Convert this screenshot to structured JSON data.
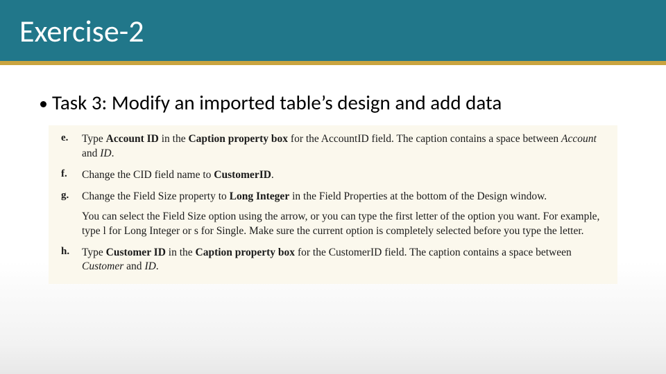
{
  "colors": {
    "title_band": "#21778a",
    "gold_line": "#c9a43f",
    "steps_bg": "#fbf8ed",
    "text": "#1a1a1a",
    "title_text": "#ffffff"
  },
  "typography": {
    "title_font": "Calibri",
    "title_size_pt": 33,
    "bullet_font": "Calibri",
    "bullet_size_pt": 22,
    "body_font": "Palatino Linotype",
    "body_size_pt": 11.5
  },
  "title": "Exercise-2",
  "bullet": "Task 3: Modify an imported table’s design and add data",
  "steps": {
    "e": {
      "letter": "e.",
      "t1": "Type ",
      "b1": "Account ID",
      "t2": " in the ",
      "b2": "Caption property box",
      "t3": " for the AccountID field. The caption contains a space between ",
      "i1": "Account",
      "t4": " and ",
      "i2": "ID",
      "t5": "."
    },
    "f": {
      "letter": "f.",
      "t1": "Change the CID field name to ",
      "b1": "CustomerID",
      "t2": "."
    },
    "g": {
      "letter": "g.",
      "t1": "Change the Field Size property to ",
      "b1": "Long Integer",
      "t2": " in the Field Properties at the bottom of the Design window.",
      "note": "You can select the Field Size option using the arrow, or you can type the first letter of the option you want. For example, type l for Long Integer or s for Single. Make sure the current option is completely selected before you type the letter."
    },
    "h": {
      "letter": "h.",
      "t1": "Type ",
      "b1": "Customer ID",
      "t2": " in the ",
      "b2": "Caption property box",
      "t3": " for the CustomerID field. The caption contains a space between ",
      "i1": "Customer",
      "t4": " and ",
      "i2": "ID",
      "t5": "."
    }
  }
}
